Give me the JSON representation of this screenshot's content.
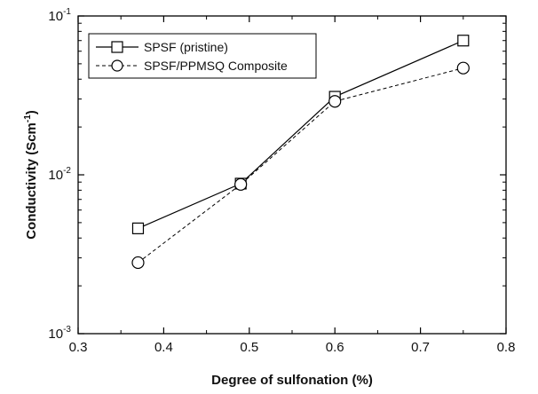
{
  "chart_data": {
    "type": "line",
    "xlabel": "Degree of sulfonation (%)",
    "ylabel": "Conductivity (Scm",
    "ylabel_sup": "-1",
    "ylabel_close": ")",
    "xlim": [
      0.3,
      0.8
    ],
    "ylim": [
      0.001,
      0.1
    ],
    "yscale": "log",
    "grid": false,
    "legend_position": "top-left",
    "x_ticks": [
      "0.3",
      "0.4",
      "0.5",
      "0.6",
      "0.7",
      "0.8"
    ],
    "y_ticks": [
      {
        "base": "10",
        "exp": "-3"
      },
      {
        "base": "10",
        "exp": "-2"
      },
      {
        "base": "10",
        "exp": "-1"
      }
    ],
    "series": [
      {
        "name": "SPSF (pristine)",
        "marker": "square",
        "line": "solid",
        "color": "#000000",
        "x": [
          0.37,
          0.49,
          0.6,
          0.75
        ],
        "y": [
          0.0046,
          0.0088,
          0.031,
          0.07
        ]
      },
      {
        "name": "SPSF/PPMSQ Composite",
        "marker": "circle",
        "line": "dashed",
        "color": "#000000",
        "x": [
          0.37,
          0.49,
          0.6,
          0.75
        ],
        "y": [
          0.0028,
          0.0087,
          0.029,
          0.047
        ]
      }
    ]
  }
}
